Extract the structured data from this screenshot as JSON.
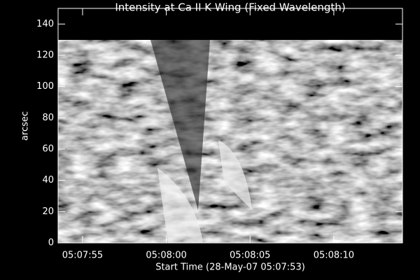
{
  "chart_data": {
    "type": "image",
    "title": "Intensity at Ca II K Wing (Fixed Wavelength)",
    "x_label": "Start Time (28-May-07 05:07:53)",
    "y_label": "arcsec",
    "xlim": [
      0.54,
      21.1
    ],
    "xticks": [
      {
        "value": 2,
        "label": "05:07:55"
      },
      {
        "value": 7,
        "label": "05:08:00"
      },
      {
        "value": 12,
        "label": "05:08:05"
      },
      {
        "value": 17,
        "label": "05:08:10"
      }
    ],
    "ylim": [
      0,
      150
    ],
    "yticks": [
      0,
      20,
      40,
      60,
      80,
      100,
      120,
      140
    ]
  }
}
